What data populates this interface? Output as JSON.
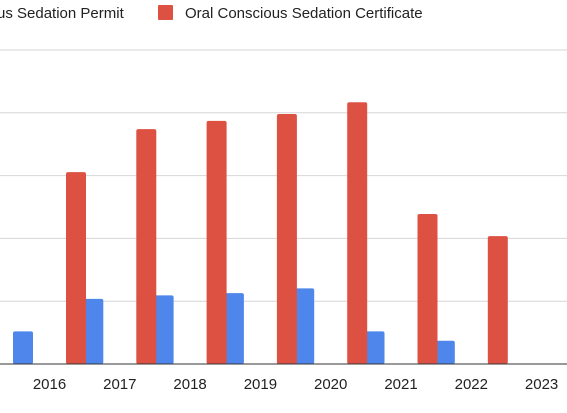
{
  "chart_data": {
    "type": "bar",
    "categories": [
      "2016",
      "2017",
      "2018",
      "2019",
      "2020",
      "2021",
      "2022",
      "2023"
    ],
    "series": [
      {
        "name": "us Sedation Permit",
        "color": "#4e86ec",
        "values": [
          14,
          28,
          29.5,
          30.5,
          32.5,
          14,
          10,
          0
        ]
      },
      {
        "name": "Oral Conscious Sedation Certificate",
        "color": "#dd5143",
        "values": [
          82.5,
          101,
          104.5,
          107.5,
          112.5,
          64.5,
          55,
          0
        ]
      }
    ],
    "ylim": [
      0,
      135
    ],
    "grid": true,
    "legend_position": "top",
    "gridline_color": "#d6d6d6",
    "axis_color": "#333333"
  }
}
